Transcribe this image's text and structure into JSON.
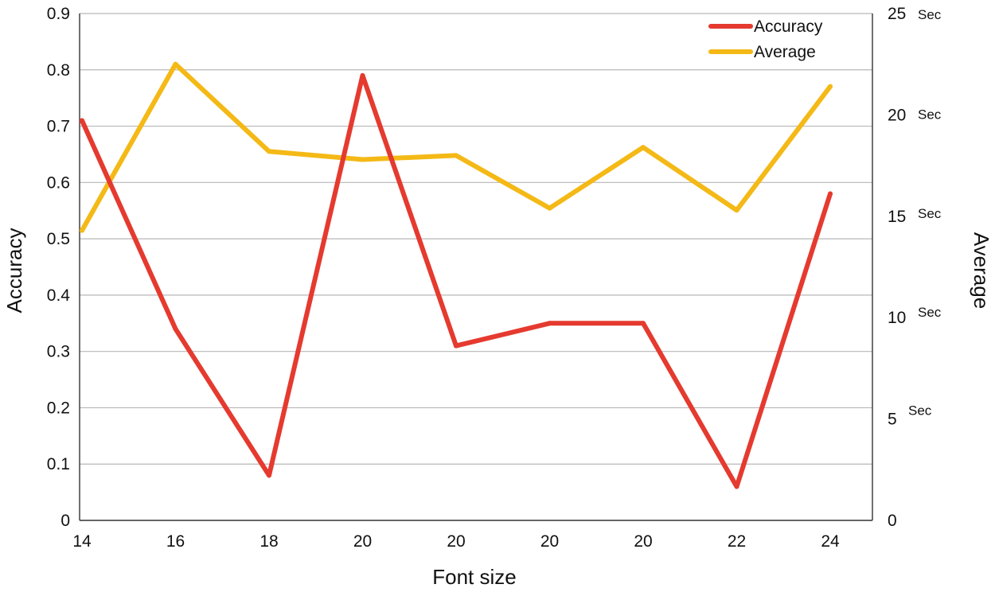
{
  "chart_data": {
    "type": "line",
    "title": "",
    "xlabel": "Font size",
    "ylabel": "Accuracy",
    "y2label": "Average",
    "categories": [
      "14",
      "16",
      "18",
      "20",
      "20",
      "20",
      "20",
      "22",
      "24"
    ],
    "ylim": [
      0,
      0.9
    ],
    "y2lim": [
      0,
      25
    ],
    "y_ticks": [
      "0",
      "0.1",
      "0.2",
      "0.3",
      "0.4",
      "0.5",
      "0.6",
      "0.7",
      "0.8",
      "0.9"
    ],
    "y2_ticks": [
      {
        "value": 0,
        "label": "0",
        "unit": ""
      },
      {
        "value": 5,
        "label": "5",
        "unit": "Sec"
      },
      {
        "value": 10,
        "label": "10",
        "unit": "Sec"
      },
      {
        "value": 15,
        "label": "15",
        "unit": "Sec"
      },
      {
        "value": 20,
        "label": "20",
        "unit": "Sec"
      },
      {
        "value": 25,
        "label": "25",
        "unit": "Sec"
      }
    ],
    "grid": true,
    "legend_position": "top-right",
    "series": [
      {
        "name": "Accuracy",
        "axis": "left",
        "color": "#e53a2f",
        "values": [
          0.71,
          0.34,
          0.08,
          0.79,
          0.31,
          0.35,
          0.35,
          0.06,
          0.58
        ]
      },
      {
        "name": "Average",
        "axis": "right",
        "color": "#f4b916",
        "values": [
          14.3,
          22.5,
          18.2,
          17.8,
          18.0,
          15.4,
          18.4,
          15.3,
          21.4
        ]
      }
    ]
  }
}
